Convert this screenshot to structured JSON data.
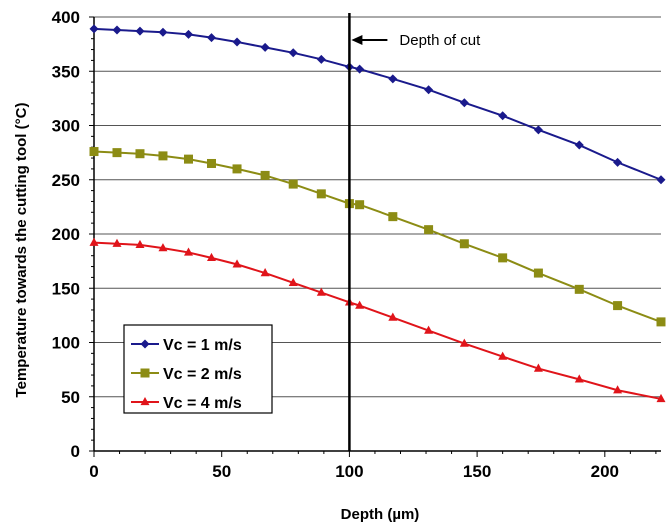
{
  "chart_data": {
    "type": "line",
    "xlabel": "Depth (µm)",
    "ylabel": "Temperature towards the cutting tool (°C)",
    "xlim": [
      0,
      222
    ],
    "ylim": [
      0,
      400
    ],
    "x_ticks": [
      0,
      50,
      100,
      150,
      200
    ],
    "y_ticks": [
      0,
      50,
      100,
      150,
      200,
      250,
      300,
      350,
      400
    ],
    "grid": "horizontal",
    "legend_position": "bottom-left",
    "annotation": {
      "text": "Depth of cut",
      "x": 100
    },
    "series": [
      {
        "name": "Vc = 1 m/s",
        "color": "#1a1a8c",
        "marker": "diamond",
        "x": [
          0,
          9,
          18,
          27,
          37,
          46,
          56,
          67,
          78,
          89,
          100,
          104,
          117,
          131,
          145,
          160,
          174,
          190,
          205,
          222
        ],
        "y": [
          389,
          388,
          387,
          386,
          384,
          381,
          377,
          372,
          367,
          361,
          354,
          352,
          343,
          333,
          321,
          309,
          296,
          282,
          266,
          250
        ]
      },
      {
        "name": "Vc = 2 m/s",
        "color": "#8c8c14",
        "marker": "square",
        "x": [
          0,
          9,
          18,
          27,
          37,
          46,
          56,
          67,
          78,
          89,
          100,
          104,
          117,
          131,
          145,
          160,
          174,
          190,
          205,
          222
        ],
        "y": [
          276,
          275,
          274,
          272,
          269,
          265,
          260,
          254,
          246,
          237,
          228,
          227,
          216,
          204,
          191,
          178,
          164,
          149,
          134,
          119
        ]
      },
      {
        "name": "Vc = 4 m/s",
        "color": "#e0141a",
        "marker": "triangle",
        "x": [
          0,
          9,
          18,
          27,
          37,
          46,
          56,
          67,
          78,
          89,
          100,
          104,
          117,
          131,
          145,
          160,
          174,
          190,
          205,
          222
        ],
        "y": [
          192,
          191,
          190,
          187,
          183,
          178,
          172,
          164,
          155,
          146,
          137,
          134,
          123,
          111,
          99,
          87,
          76,
          66,
          56,
          48
        ]
      }
    ]
  }
}
